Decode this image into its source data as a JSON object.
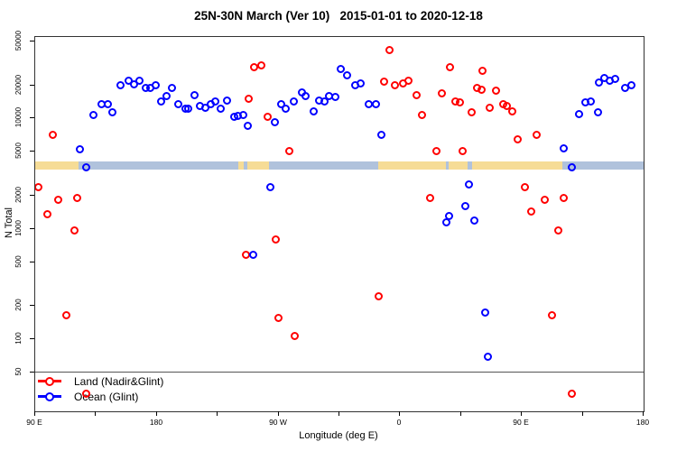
{
  "title": "25N-30N March (Ver 10)   2015-01-01 to 2020-12-18",
  "legend": {
    "items": [
      {
        "label": "Land (Nadir&Glint)",
        "color": "#FF0000"
      },
      {
        "label": "Ocean (Glint)",
        "color": "#0000FF"
      }
    ]
  },
  "chart_data": {
    "type": "scatter",
    "title": "25N-30N March (Ver 10)   2015-01-01 to 2020-12-18",
    "xlabel": "Longitude (deg E)",
    "ylabel": "N Total",
    "x_axis": {
      "note": "longitude axis wraps: 90E to 180 twice round the globe, plotted as continuous 90..540 deg E",
      "range": [
        90,
        540
      ],
      "minor_tick_step": 45,
      "tick_labels": [
        {
          "deg": 90,
          "label": "90 E"
        },
        {
          "deg": 180,
          "label": "180"
        },
        {
          "deg": 270,
          "label": "90 W"
        },
        {
          "deg": 360,
          "label": "0"
        },
        {
          "deg": 450,
          "label": "90 E"
        },
        {
          "deg": 540,
          "label": "180"
        }
      ]
    },
    "y_axis": {
      "scale": "log10",
      "ticks": [
        50,
        100,
        200,
        500,
        1000,
        2000,
        5000,
        10000,
        20000,
        50000
      ],
      "top_value": 50000
    },
    "reference_line_n": 51,
    "land_ocean_band": {
      "description": "land/ocean strip map for 25N-30N drawn across plot near N=3800",
      "land_color": "#F6DC96",
      "ocean_color": "#B0C2DC",
      "segments": [
        {
          "from": 90,
          "to": 122,
          "type": "land"
        },
        {
          "from": 122,
          "to": 240,
          "type": "ocean"
        },
        {
          "from": 240,
          "to": 244,
          "type": "land"
        },
        {
          "from": 244,
          "to": 247,
          "type": "ocean"
        },
        {
          "from": 247,
          "to": 263,
          "type": "land"
        },
        {
          "from": 263,
          "to": 344,
          "type": "ocean"
        },
        {
          "from": 344,
          "to": 394,
          "type": "land"
        },
        {
          "from": 394,
          "to": 396,
          "type": "ocean"
        },
        {
          "from": 396,
          "to": 410,
          "type": "land"
        },
        {
          "from": 410,
          "to": 413,
          "type": "ocean"
        },
        {
          "from": 413,
          "to": 480,
          "type": "land"
        },
        {
          "from": 480,
          "to": 540,
          "type": "ocean"
        }
      ]
    },
    "series": [
      {
        "name": "Land (Nadir&Glint)",
        "color": "#FF0000",
        "points": [
          [
            92,
            2370
          ],
          [
            99,
            1370
          ],
          [
            103,
            7100
          ],
          [
            107,
            1850
          ],
          [
            113,
            166
          ],
          [
            119,
            977
          ],
          [
            121,
            1890
          ],
          [
            128,
            32
          ],
          [
            246,
            577
          ],
          [
            248,
            15000
          ],
          [
            252,
            29000
          ],
          [
            257,
            30600
          ],
          [
            262,
            10300
          ],
          [
            268,
            809
          ],
          [
            270,
            157
          ],
          [
            278,
            5100
          ],
          [
            282,
            106
          ],
          [
            344,
            243
          ],
          [
            348,
            21800
          ],
          [
            352,
            42000
          ],
          [
            356,
            20200
          ],
          [
            362,
            21000
          ],
          [
            366,
            22200
          ],
          [
            372,
            16400
          ],
          [
            376,
            10700
          ],
          [
            382,
            1920
          ],
          [
            387,
            5030
          ],
          [
            391,
            16800
          ],
          [
            397,
            29500
          ],
          [
            401,
            14200
          ],
          [
            404,
            13900
          ],
          [
            406,
            5030
          ],
          [
            413,
            11300
          ],
          [
            417,
            18800
          ],
          [
            420,
            18400
          ],
          [
            421,
            26900
          ],
          [
            426,
            12600
          ],
          [
            431,
            17800
          ],
          [
            436,
            13600
          ],
          [
            439,
            12900
          ],
          [
            443,
            11700
          ],
          [
            447,
            6430
          ],
          [
            452,
            2410
          ],
          [
            457,
            1430
          ],
          [
            461,
            7190
          ],
          [
            467,
            1820
          ],
          [
            472,
            166
          ],
          [
            477,
            977
          ],
          [
            481,
            1920
          ],
          [
            487,
            32
          ]
        ]
      },
      {
        "name": "Ocean (Glint)",
        "color": "#0000FF",
        "points": [
          [
            123,
            5320
          ],
          [
            128,
            3650
          ],
          [
            133,
            10700
          ],
          [
            139,
            13400
          ],
          [
            144,
            13400
          ],
          [
            147,
            11500
          ],
          [
            153,
            19900
          ],
          [
            159,
            22200
          ],
          [
            163,
            20600
          ],
          [
            167,
            22200
          ],
          [
            172,
            18800
          ],
          [
            175,
            18800
          ],
          [
            179,
            19900
          ],
          [
            183,
            14400
          ],
          [
            187,
            15900
          ],
          [
            191,
            19100
          ],
          [
            196,
            13400
          ],
          [
            201,
            12400
          ],
          [
            203,
            12200
          ],
          [
            208,
            16400
          ],
          [
            212,
            12900
          ],
          [
            216,
            12600
          ],
          [
            220,
            13600
          ],
          [
            223,
            14200
          ],
          [
            227,
            12200
          ],
          [
            232,
            14700
          ],
          [
            237,
            10300
          ],
          [
            240,
            10500
          ],
          [
            244,
            10700
          ],
          [
            247,
            8680
          ],
          [
            251,
            577
          ],
          [
            264,
            2410
          ],
          [
            267,
            9200
          ],
          [
            272,
            13600
          ],
          [
            275,
            12200
          ],
          [
            281,
            14400
          ],
          [
            287,
            17100
          ],
          [
            290,
            15900
          ],
          [
            296,
            11700
          ],
          [
            300,
            14700
          ],
          [
            304,
            14200
          ],
          [
            307,
            15900
          ],
          [
            312,
            15600
          ],
          [
            316,
            27900
          ],
          [
            321,
            24900
          ],
          [
            327,
            19900
          ],
          [
            331,
            21000
          ],
          [
            337,
            13400
          ],
          [
            342,
            13600
          ],
          [
            346,
            7060
          ],
          [
            394,
            1140
          ],
          [
            396,
            1320
          ],
          [
            408,
            1600
          ],
          [
            411,
            2510
          ],
          [
            415,
            1200
          ],
          [
            423,
            173
          ],
          [
            425,
            70
          ],
          [
            481,
            5420
          ],
          [
            487,
            3650
          ],
          [
            492,
            10900
          ],
          [
            497,
            13900
          ],
          [
            501,
            14200
          ],
          [
            506,
            11500
          ],
          [
            507,
            21400
          ],
          [
            511,
            23500
          ],
          [
            515,
            22200
          ],
          [
            519,
            22700
          ],
          [
            526,
            19100
          ],
          [
            531,
            19900
          ]
        ]
      }
    ]
  }
}
